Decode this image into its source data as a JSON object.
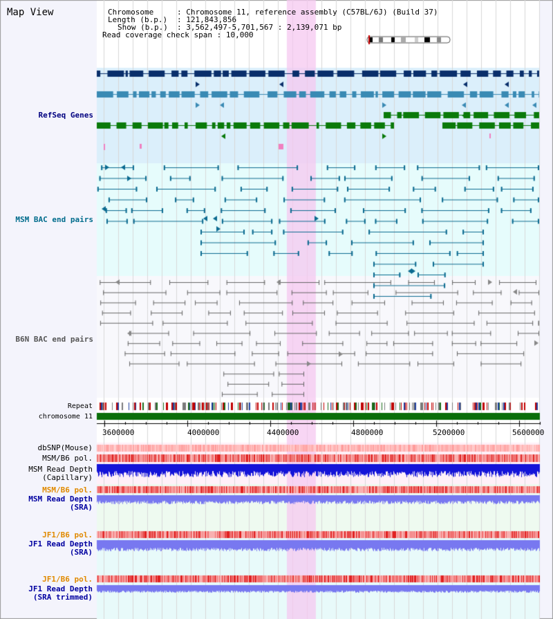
{
  "view": {
    "title": "Map View",
    "chromosome_label": "Chromosome",
    "chromosome_value": "Chromosome 11, reference assembly (C57BL/6J) (Build 37)",
    "length_label": "Length (b.p.)",
    "length_value": "121,843,856",
    "show_label": "Show (b.p.)",
    "show_value": "3,562,497-5,701,567 : 2,139,071 bp",
    "coverage_label": "Read coverage check span",
    "coverage_value": "10,000"
  },
  "tracks": {
    "refseq": {
      "label": "RefSeq Genes",
      "color": "#000080"
    },
    "msm_bac": {
      "label": "MSM BAC end pairs",
      "color": "#006c8c"
    },
    "b6n_bac": {
      "label": "B6N BAC end pairs",
      "color": "#555555"
    },
    "repeat": {
      "label": "Repeat"
    },
    "chromosome": {
      "label": "chromosome 11",
      "color": "#006600"
    },
    "dbsnp": {
      "label": "dbSNP(Mouse)"
    },
    "msm_b6_pol": {
      "label": "MSM/B6 pol."
    },
    "msm_depth_cap": {
      "label": "MSM Read Depth\n(Capillary)"
    },
    "msm_b6_pol2": {
      "label": "MSM/B6 pol.",
      "color": "#e08a00"
    },
    "msm_depth_sra": {
      "label": "MSM Read Depth\n(SRA)",
      "color": "#0000a0"
    },
    "jf1_b6_pol": {
      "label": "JF1/B6 pol.",
      "color": "#e08a00"
    },
    "jf1_depth_sra": {
      "label": "JF1 Read Depth\n(SRA)",
      "color": "#0000a0"
    },
    "jf1_b6_pol2": {
      "label": "JF1/B6 pol.",
      "color": "#e08a00"
    },
    "jf1_depth_trim": {
      "label": "JF1 Read Depth\n(SRA trimmed)",
      "color": "#0000a0"
    }
  },
  "axis": {
    "ticks": [
      "3600000",
      "4000000",
      "4400000",
      "4800000",
      "5200000",
      "5600000"
    ],
    "tick_values": [
      3600000,
      4000000,
      4400000,
      4800000,
      5200000,
      5600000
    ],
    "range_start": 3562497,
    "range_end": 5701567
  },
  "highlight": {
    "start": 4480000,
    "end": 4620000,
    "color": "#f5c8f0"
  },
  "colors": {
    "refseq_dark": "#0a2f6b",
    "refseq_mid": "#3a8ab4",
    "refseq_green": "#0a7a0a",
    "msm": "#0a6a90",
    "b6n": "#666666",
    "bg_refseq": "#dbeffb",
    "bg_msm": "#e6fcfc",
    "bg_b6n": "#f8f8fc",
    "depth_blue": "#1414d8",
    "depth_light": "#7878f0"
  }
}
